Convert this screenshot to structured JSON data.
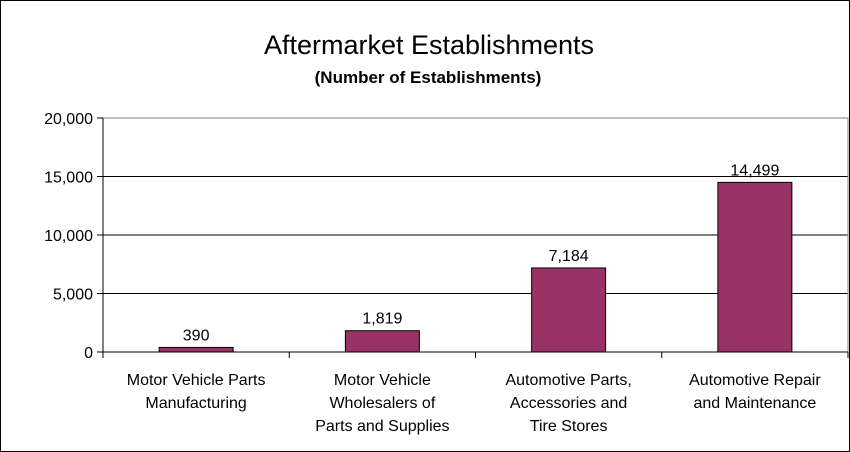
{
  "chart_data": {
    "type": "bar",
    "title": "Aftermarket Establishments",
    "subtitle": "(Number of Establishments)",
    "xlabel": "",
    "ylabel": "",
    "ylim": [
      0,
      20000
    ],
    "yticks": [
      0,
      5000,
      10000,
      15000,
      20000
    ],
    "ytick_labels": [
      "0",
      "5,000",
      "10,000",
      "15,000",
      "20,000"
    ],
    "grid": true,
    "legend": "none",
    "bar_color": "#993366",
    "categories": [
      [
        "Motor Vehicle Parts",
        "Manufacturing"
      ],
      [
        "Motor Vehicle",
        "Wholesalers of",
        "Parts and Supplies"
      ],
      [
        "Automotive Parts,",
        "Accessories and",
        "Tire Stores"
      ],
      [
        "Automotive Repair",
        "and Maintenance"
      ]
    ],
    "values": [
      390,
      1819,
      7184,
      14499
    ],
    "data_labels": [
      "390",
      "1,819",
      "7,184",
      "14,499"
    ]
  }
}
